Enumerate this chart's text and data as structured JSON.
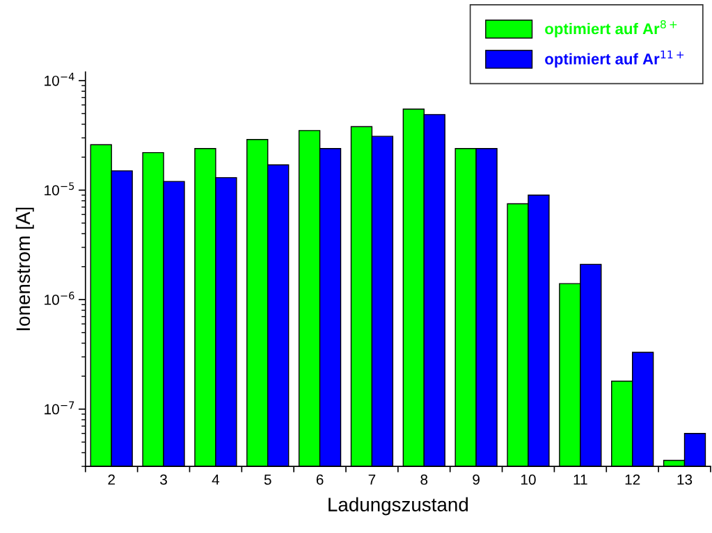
{
  "chart_data": {
    "type": "bar",
    "xlabel": "Ladungszustand",
    "ylabel": "Ionenstrom [A]",
    "categories": [
      "2",
      "3",
      "4",
      "5",
      "6",
      "7",
      "8",
      "9",
      "10",
      "11",
      "12",
      "13"
    ],
    "series": [
      {
        "name": "optimiert auf Ar$^{8+}$",
        "color": "#00ff00",
        "values": [
          2.6e-05,
          2.2e-05,
          2.4e-05,
          2.9e-05,
          3.5e-05,
          3.8e-05,
          5.5e-05,
          2.4e-05,
          7.5e-06,
          1.4e-06,
          1.8e-07,
          3.4e-08
        ]
      },
      {
        "name": "optimiert auf Ar$^{11+}$",
        "color": "#0000ff",
        "values": [
          1.5e-05,
          1.2e-05,
          1.3e-05,
          1.7e-05,
          2.4e-05,
          3.1e-05,
          4.9e-05,
          2.4e-05,
          9e-06,
          2.1e-06,
          3.3e-07,
          6e-08
        ]
      }
    ],
    "log": "y",
    "ylim": [
      3e-08,
      0.00012
    ],
    "yticks": [
      {
        "value": 1e-07,
        "label": "10$^{−7}$"
      },
      {
        "value": 1e-06,
        "label": "10$^{−6}$"
      },
      {
        "value": 1e-05,
        "label": "10$^{−5}$"
      },
      {
        "value": 0.0001,
        "label": "10$^{−4}$"
      }
    ],
    "grid": false,
    "legend": "top right"
  }
}
